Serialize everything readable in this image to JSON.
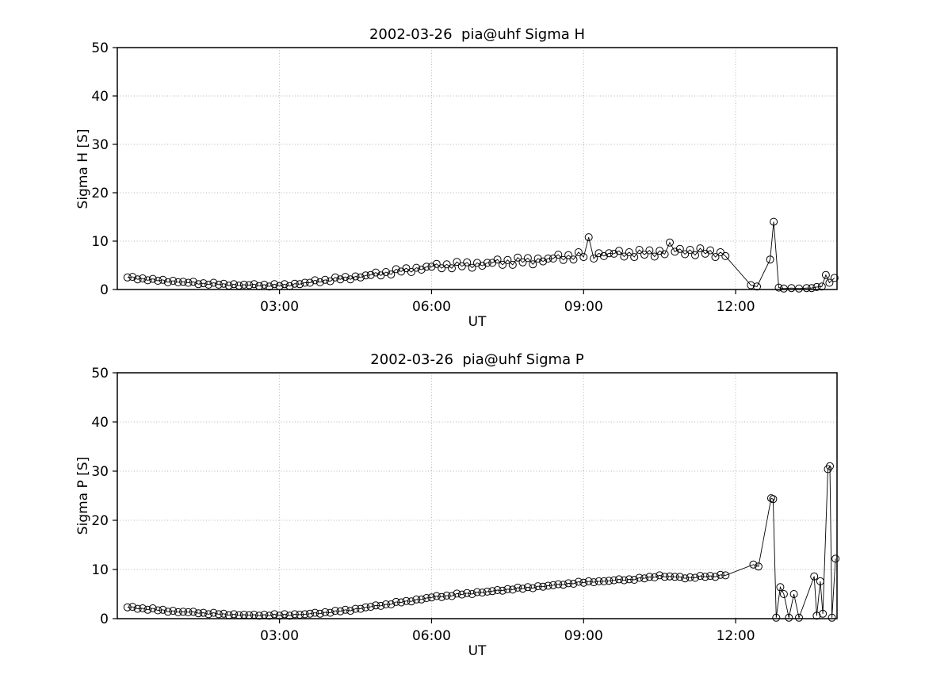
{
  "page": {
    "background": "#ffffff",
    "text_color": "#000000"
  },
  "chart_data": [
    {
      "type": "line",
      "title": "2002-03-26  pia@uhf Sigma H",
      "xlabel": "UT",
      "ylabel": "Sigma H [S]",
      "xlim": [
        -0.2,
        14
      ],
      "ylim": [
        0,
        50
      ],
      "xticks": {
        "values": [
          3,
          6,
          9,
          12
        ],
        "labels": [
          "03:00",
          "06:00",
          "09:00",
          "12:00"
        ]
      },
      "yticks": {
        "values": [
          0,
          10,
          20,
          30,
          40,
          50
        ],
        "labels": [
          "0",
          "10",
          "20",
          "30",
          "40",
          "50"
        ]
      },
      "grid": true,
      "grid_color": "#b5b5b5",
      "line_color": "#000000",
      "marker": "open-circle",
      "series": [
        {
          "name": "Sigma H",
          "t_start": 0,
          "t_step": 0.1,
          "values": [
            2.5,
            2.6,
            2.1,
            2.3,
            1.9,
            2.2,
            1.8,
            2.0,
            1.5,
            1.8,
            1.5,
            1.6,
            1.4,
            1.6,
            1.1,
            1.3,
            1.0,
            1.4,
            1.0,
            1.2,
            0.8,
            1.1,
            0.8,
            1.0,
            0.9,
            1.1,
            0.7,
            1.0,
            0.6,
            1.1,
            0.7,
            1.1,
            0.7,
            1.2,
            1.1,
            1.4,
            1.4,
            1.9,
            1.5,
            2.0,
            1.7,
            2.5,
            2.1,
            2.6,
            2.1,
            2.7,
            2.5,
            2.9,
            3.0,
            3.5,
            2.9,
            3.6,
            3.1,
            4.2,
            3.7,
            4.4,
            3.6,
            4.5,
            4.1,
            4.7,
            4.7,
            5.3,
            4.4,
            5.2,
            4.4,
            5.7,
            4.8,
            5.6,
            4.5,
            5.5,
            4.9,
            5.5,
            5.5,
            6.2,
            5.1,
            6.1,
            5.1,
            6.6,
            5.6,
            6.5,
            5.2,
            6.4,
            5.8,
            6.4,
            6.4,
            7.2,
            6.1,
            7.1,
            6.2,
            7.7,
            6.7,
            10.8,
            6.4,
            7.5,
            6.9,
            7.5,
            7.4,
            8.0,
            6.8,
            7.7,
            6.7,
            8.2,
            7.2,
            8.1,
            6.8,
            8.0,
            7.3,
            9.7,
            7.8,
            8.4,
            7.3,
            8.2,
            7.1,
            8.5,
            7.4,
            8.1,
            6.7,
            7.7,
            6.9
          ],
          "extra_points": [
            [
              12.3,
              0.9
            ],
            [
              12.42,
              0.6
            ],
            [
              12.68,
              6.2
            ],
            [
              12.75,
              14.0
            ],
            [
              12.85,
              0.4
            ],
            [
              12.95,
              0.2
            ],
            [
              13.1,
              0.3
            ],
            [
              13.25,
              0.2
            ],
            [
              13.4,
              0.3
            ],
            [
              13.5,
              0.3
            ],
            [
              13.6,
              0.5
            ],
            [
              13.7,
              0.6
            ],
            [
              13.78,
              3.0
            ],
            [
              13.85,
              1.4
            ],
            [
              13.95,
              2.4
            ]
          ]
        }
      ]
    },
    {
      "type": "line",
      "title": "2002-03-26  pia@uhf Sigma P",
      "xlabel": "UT",
      "ylabel": "Sigma P [S]",
      "xlim": [
        -0.2,
        14
      ],
      "ylim": [
        0,
        50
      ],
      "xticks": {
        "values": [
          3,
          6,
          9,
          12
        ],
        "labels": [
          "03:00",
          "06:00",
          "09:00",
          "12:00"
        ]
      },
      "yticks": {
        "values": [
          0,
          10,
          20,
          30,
          40,
          50
        ],
        "labels": [
          "0",
          "10",
          "20",
          "30",
          "40",
          "50"
        ]
      },
      "grid": true,
      "grid_color": "#b5b5b5",
      "line_color": "#000000",
      "marker": "open-circle",
      "series": [
        {
          "name": "Sigma P",
          "t_start": 0,
          "t_step": 0.1,
          "values": [
            2.3,
            2.4,
            2.0,
            2.1,
            1.8,
            2.1,
            1.7,
            1.8,
            1.4,
            1.6,
            1.3,
            1.4,
            1.3,
            1.4,
            1.1,
            1.2,
            0.9,
            1.2,
            0.9,
            1.0,
            0.7,
            0.9,
            0.7,
            0.8,
            0.7,
            0.8,
            0.6,
            0.8,
            0.6,
            0.9,
            0.6,
            0.9,
            0.6,
            0.9,
            0.8,
            0.9,
            1.0,
            1.2,
            1.0,
            1.3,
            1.2,
            1.6,
            1.5,
            1.8,
            1.6,
            2.0,
            2.0,
            2.3,
            2.4,
            2.7,
            2.6,
            2.9,
            2.9,
            3.4,
            3.3,
            3.6,
            3.5,
            3.9,
            3.9,
            4.2,
            4.3,
            4.6,
            4.4,
            4.7,
            4.6,
            5.1,
            4.9,
            5.2,
            5.0,
            5.4,
            5.3,
            5.5,
            5.6,
            5.8,
            5.7,
            6.0,
            5.9,
            6.3,
            6.1,
            6.4,
            6.2,
            6.6,
            6.5,
            6.7,
            6.8,
            7.0,
            6.9,
            7.2,
            7.1,
            7.5,
            7.3,
            7.6,
            7.4,
            7.6,
            7.6,
            7.7,
            7.8,
            8.0,
            7.8,
            8.0,
            7.9,
            8.3,
            8.2,
            8.5,
            8.4,
            8.8,
            8.5,
            8.6,
            8.5,
            8.5,
            8.2,
            8.4,
            8.3,
            8.7,
            8.5,
            8.7,
            8.5,
            8.9,
            8.8
          ],
          "extra_points": [
            [
              12.35,
              11.0
            ],
            [
              12.45,
              10.6
            ],
            [
              12.7,
              24.5
            ],
            [
              12.74,
              24.3
            ],
            [
              12.8,
              0.2
            ],
            [
              12.88,
              6.4
            ],
            [
              12.95,
              5.0
            ],
            [
              13.05,
              0.2
            ],
            [
              13.15,
              5.0
            ],
            [
              13.25,
              0.2
            ],
            [
              13.55,
              8.6
            ],
            [
              13.6,
              0.6
            ],
            [
              13.67,
              7.6
            ],
            [
              13.72,
              1.0
            ],
            [
              13.82,
              30.4
            ],
            [
              13.86,
              31.0
            ],
            [
              13.9,
              0.2
            ],
            [
              13.97,
              12.2
            ]
          ]
        }
      ]
    }
  ]
}
